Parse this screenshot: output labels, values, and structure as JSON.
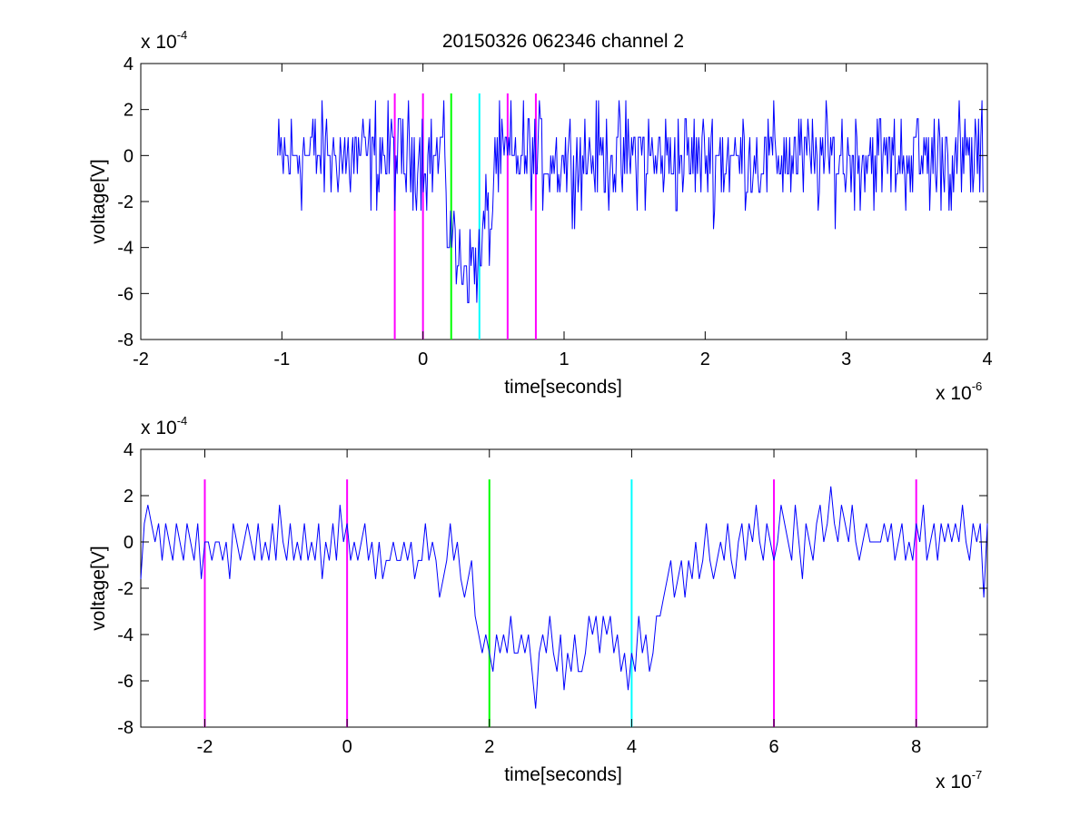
{
  "figure": {
    "title": "20150326 062346 channel 2"
  },
  "chart_data": [
    {
      "type": "line",
      "xlabel": "time[seconds]",
      "ylabel": "voltage[V]",
      "x_exponent_label": "x 10",
      "x_exponent": "-6",
      "y_exponent_label": "x 10",
      "y_exponent": "-4",
      "xlim": [
        -2,
        4
      ],
      "ylim": [
        -8,
        4
      ],
      "grid": false,
      "x_ticks": [
        "-2",
        "-1",
        "0",
        "1",
        "2",
        "3",
        "4"
      ],
      "y_ticks": [
        "4",
        "2",
        "0",
        "-2",
        "-4",
        "-6",
        "-8"
      ],
      "series": [
        {
          "color": "#0000ff",
          "x_range": [
            -1.03,
            3.97
          ],
          "segments": [
            {
              "x_end": -0.95,
              "base": -0.2
            },
            {
              "x_end": 0.17,
              "base": 0.0
            },
            {
              "x_end": 0.22,
              "base": -3.2
            },
            {
              "x_end": 0.42,
              "base": -4.7
            },
            {
              "x_end": 0.5,
              "base": -3.0
            },
            {
              "x_end": 3.97,
              "base": -0.1
            }
          ],
          "y_min": -7.2,
          "y_max": 2.4
        }
      ],
      "vlines": [
        {
          "x": -0.2,
          "color": "#ff00ff"
        },
        {
          "x": 0.0,
          "color": "#ff00ff"
        },
        {
          "x": 0.2,
          "color": "#00ff00"
        },
        {
          "x": 0.4,
          "color": "#00ffff"
        },
        {
          "x": 0.6,
          "color": "#ff00ff"
        },
        {
          "x": 0.8,
          "color": "#ff00ff"
        }
      ],
      "vline_ylim": [
        -8,
        2.7
      ]
    },
    {
      "type": "line",
      "xlabel": "time[seconds]",
      "ylabel": "voltage[V]",
      "x_exponent_label": "x 10",
      "x_exponent": "-7",
      "y_exponent_label": "x 10",
      "y_exponent": "-4",
      "xlim": [
        -2.9,
        9
      ],
      "ylim": [
        -8,
        4
      ],
      "grid": false,
      "x_ticks": [
        "-2",
        "0",
        "2",
        "4",
        "6",
        "8"
      ],
      "y_ticks": [
        "4",
        "2",
        "0",
        "-2",
        "-4",
        "-6",
        "-8"
      ],
      "series": [
        {
          "color": "#0000ff",
          "points": [
            [
              -2.9,
              -1.6
            ],
            [
              -2.85,
              0.8
            ],
            [
              -2.8,
              1.6
            ],
            [
              -2.75,
              0.8
            ],
            [
              -2.7,
              0
            ],
            [
              -2.65,
              0.8
            ],
            [
              -2.6,
              -0.8
            ],
            [
              -2.55,
              0.8
            ],
            [
              -2.5,
              0
            ],
            [
              -2.45,
              -0.8
            ],
            [
              -2.4,
              0.8
            ],
            [
              -2.35,
              0
            ],
            [
              -2.3,
              -0.8
            ],
            [
              -2.25,
              0.8
            ],
            [
              -2.2,
              0
            ],
            [
              -2.15,
              -0.8
            ],
            [
              -2.1,
              0.8
            ],
            [
              -2.05,
              -1.6
            ],
            [
              -2.0,
              0
            ],
            [
              -1.95,
              0
            ],
            [
              -1.9,
              -0.8
            ],
            [
              -1.85,
              0
            ],
            [
              -1.8,
              0
            ],
            [
              -1.75,
              -0.8
            ],
            [
              -1.7,
              0
            ],
            [
              -1.65,
              -1.6
            ],
            [
              -1.6,
              0.8
            ],
            [
              -1.55,
              0
            ],
            [
              -1.5,
              -0.8
            ],
            [
              -1.45,
              0
            ],
            [
              -1.4,
              0.8
            ],
            [
              -1.35,
              0
            ],
            [
              -1.3,
              -0.8
            ],
            [
              -1.25,
              0.8
            ],
            [
              -1.2,
              -0.8
            ],
            [
              -1.15,
              0
            ],
            [
              -1.1,
              -0.8
            ],
            [
              -1.05,
              0.8
            ],
            [
              -1.0,
              -0.8
            ],
            [
              -0.95,
              1.6
            ],
            [
              -0.9,
              0
            ],
            [
              -0.85,
              -0.8
            ],
            [
              -0.8,
              0.8
            ],
            [
              -0.75,
              -0.8
            ],
            [
              -0.7,
              0
            ],
            [
              -0.65,
              -0.8
            ],
            [
              -0.6,
              0.8
            ],
            [
              -0.55,
              -0.8
            ],
            [
              -0.5,
              0
            ],
            [
              -0.45,
              -0.8
            ],
            [
              -0.4,
              0.8
            ],
            [
              -0.35,
              -1.6
            ],
            [
              -0.3,
              0
            ],
            [
              -0.25,
              -0.8
            ],
            [
              -0.2,
              0.8
            ],
            [
              -0.15,
              -0.8
            ],
            [
              -0.1,
              1.6
            ],
            [
              -0.05,
              0
            ],
            [
              0.0,
              0.8
            ],
            [
              0.05,
              -0.8
            ],
            [
              0.1,
              0
            ],
            [
              0.15,
              -0.8
            ],
            [
              0.2,
              0
            ],
            [
              0.25,
              0.8
            ],
            [
              0.3,
              -0.8
            ],
            [
              0.35,
              0
            ],
            [
              0.4,
              -1.6
            ],
            [
              0.45,
              0
            ],
            [
              0.5,
              -1.6
            ],
            [
              0.55,
              -0.8
            ],
            [
              0.6,
              -0.8
            ],
            [
              0.65,
              0
            ],
            [
              0.7,
              -0.8
            ],
            [
              0.75,
              -0.8
            ],
            [
              0.8,
              0
            ],
            [
              0.85,
              -0.8
            ],
            [
              0.9,
              0
            ],
            [
              0.95,
              -1.6
            ],
            [
              1.0,
              -0.8
            ],
            [
              1.05,
              -0.8
            ],
            [
              1.1,
              0.8
            ],
            [
              1.15,
              -0.8
            ],
            [
              1.2,
              0
            ],
            [
              1.25,
              -0.8
            ],
            [
              1.3,
              -2.4
            ],
            [
              1.35,
              -1.6
            ],
            [
              1.4,
              -0.8
            ],
            [
              1.45,
              0.8
            ],
            [
              1.5,
              -0.8
            ],
            [
              1.55,
              0
            ],
            [
              1.6,
              -1.6
            ],
            [
              1.65,
              -2.4
            ],
            [
              1.7,
              -1.6
            ],
            [
              1.75,
              -0.8
            ],
            [
              1.8,
              -3.2
            ],
            [
              1.85,
              -4.0
            ],
            [
              1.9,
              -4.8
            ],
            [
              1.95,
              -4.0
            ],
            [
              2.0,
              -4.8
            ],
            [
              2.05,
              -5.6
            ],
            [
              2.1,
              -4.0
            ],
            [
              2.15,
              -4.8
            ],
            [
              2.2,
              -4.0
            ],
            [
              2.25,
              -4.8
            ],
            [
              2.3,
              -3.2
            ],
            [
              2.35,
              -4.8
            ],
            [
              2.4,
              -4.8
            ],
            [
              2.45,
              -4.0
            ],
            [
              2.5,
              -4.8
            ],
            [
              2.55,
              -4.0
            ],
            [
              2.6,
              -5.6
            ],
            [
              2.65,
              -7.2
            ],
            [
              2.7,
              -4.8
            ],
            [
              2.75,
              -4.0
            ],
            [
              2.8,
              -4.8
            ],
            [
              2.85,
              -3.2
            ],
            [
              2.9,
              -4.8
            ],
            [
              2.95,
              -5.6
            ],
            [
              3.0,
              -4.0
            ],
            [
              3.05,
              -6.4
            ],
            [
              3.1,
              -4.8
            ],
            [
              3.15,
              -5.6
            ],
            [
              3.2,
              -4.0
            ],
            [
              3.25,
              -5.6
            ],
            [
              3.3,
              -5.6
            ],
            [
              3.35,
              -4.8
            ],
            [
              3.4,
              -3.2
            ],
            [
              3.45,
              -4.0
            ],
            [
              3.5,
              -3.2
            ],
            [
              3.55,
              -4.8
            ],
            [
              3.6,
              -3.2
            ],
            [
              3.65,
              -4.0
            ],
            [
              3.7,
              -3.2
            ],
            [
              3.75,
              -4.8
            ],
            [
              3.8,
              -4.0
            ],
            [
              3.85,
              -5.6
            ],
            [
              3.9,
              -4.8
            ],
            [
              3.95,
              -6.4
            ],
            [
              4.0,
              -4.8
            ],
            [
              4.05,
              -5.6
            ],
            [
              4.1,
              -3.2
            ],
            [
              4.15,
              -4.8
            ],
            [
              4.2,
              -4.0
            ],
            [
              4.25,
              -5.6
            ],
            [
              4.3,
              -4.8
            ],
            [
              4.35,
              -3.2
            ],
            [
              4.4,
              -3.2
            ],
            [
              4.45,
              -2.4
            ],
            [
              4.5,
              -1.6
            ],
            [
              4.55,
              -0.8
            ],
            [
              4.6,
              -2.4
            ],
            [
              4.65,
              -1.6
            ],
            [
              4.7,
              -0.8
            ],
            [
              4.75,
              -2.4
            ],
            [
              4.8,
              -0.8
            ],
            [
              4.85,
              -1.6
            ],
            [
              4.9,
              0
            ],
            [
              4.95,
              -1.6
            ],
            [
              5.0,
              -0.8
            ],
            [
              5.05,
              0.8
            ],
            [
              5.1,
              -0.8
            ],
            [
              5.15,
              -1.6
            ],
            [
              5.2,
              -0.8
            ],
            [
              5.25,
              0
            ],
            [
              5.3,
              -0.8
            ],
            [
              5.35,
              0.8
            ],
            [
              5.4,
              -0.8
            ],
            [
              5.45,
              -1.6
            ],
            [
              5.5,
              0
            ],
            [
              5.55,
              0.8
            ],
            [
              5.6,
              -0.8
            ],
            [
              5.65,
              0.8
            ],
            [
              5.7,
              0
            ],
            [
              5.75,
              1.6
            ],
            [
              5.8,
              0
            ],
            [
              5.85,
              -0.8
            ],
            [
              5.9,
              0.8
            ],
            [
              5.95,
              0
            ],
            [
              6.0,
              -0.8
            ],
            [
              6.05,
              0
            ],
            [
              6.1,
              1.6
            ],
            [
              6.15,
              0.8
            ],
            [
              6.2,
              0
            ],
            [
              6.25,
              -0.8
            ],
            [
              6.3,
              1.6
            ],
            [
              6.35,
              0
            ],
            [
              6.4,
              -1.6
            ],
            [
              6.45,
              0.8
            ],
            [
              6.5,
              0
            ],
            [
              6.55,
              -0.8
            ],
            [
              6.6,
              0.8
            ],
            [
              6.65,
              1.6
            ],
            [
              6.7,
              0
            ],
            [
              6.75,
              0.8
            ],
            [
              6.8,
              2.4
            ],
            [
              6.85,
              0.8
            ],
            [
              6.9,
              0
            ],
            [
              6.95,
              1.6
            ],
            [
              7.0,
              0.8
            ],
            [
              7.05,
              0
            ],
            [
              7.1,
              1.6
            ],
            [
              7.15,
              0
            ],
            [
              7.2,
              -0.8
            ],
            [
              7.25,
              0
            ],
            [
              7.3,
              0.8
            ],
            [
              7.35,
              0
            ],
            [
              7.4,
              0
            ],
            [
              7.45,
              0
            ],
            [
              7.5,
              0
            ],
            [
              7.55,
              0.8
            ],
            [
              7.6,
              0
            ],
            [
              7.65,
              0.8
            ],
            [
              7.7,
              -0.8
            ],
            [
              7.75,
              0
            ],
            [
              7.8,
              0.8
            ],
            [
              7.85,
              -0.8
            ],
            [
              7.9,
              0
            ],
            [
              7.95,
              -0.8
            ],
            [
              8.0,
              0.8
            ],
            [
              8.05,
              0
            ],
            [
              8.1,
              1.6
            ],
            [
              8.15,
              -0.8
            ],
            [
              8.2,
              0
            ],
            [
              8.25,
              0.8
            ],
            [
              8.3,
              -0.8
            ],
            [
              8.35,
              0.8
            ],
            [
              8.4,
              0
            ],
            [
              8.45,
              0.8
            ],
            [
              8.5,
              0
            ],
            [
              8.55,
              0.8
            ],
            [
              8.6,
              0
            ],
            [
              8.65,
              1.6
            ],
            [
              8.7,
              0
            ],
            [
              8.75,
              -0.8
            ],
            [
              8.8,
              0.8
            ],
            [
              8.85,
              0
            ],
            [
              8.9,
              0.8
            ],
            [
              8.95,
              -2.4
            ],
            [
              9.0,
              0.8
            ]
          ]
        }
      ],
      "vlines": [
        {
          "x": -2,
          "color": "#ff00ff"
        },
        {
          "x": 0,
          "color": "#ff00ff"
        },
        {
          "x": 2,
          "color": "#00ff00"
        },
        {
          "x": 4,
          "color": "#00ffff"
        },
        {
          "x": 6,
          "color": "#ff00ff"
        },
        {
          "x": 8,
          "color": "#ff00ff"
        }
      ],
      "vline_ylim": [
        -8,
        2.7
      ]
    }
  ]
}
